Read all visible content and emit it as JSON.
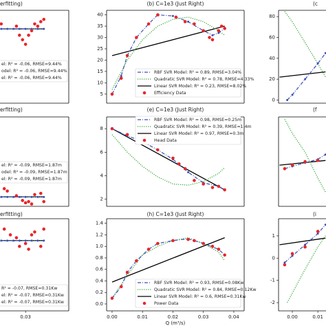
{
  "chart_data": [
    {
      "type": "line",
      "title": "erfitting)",
      "xlim": [
        0.0216,
        0.0442
      ],
      "ylim": [
        1,
        42
      ],
      "series": [
        {
          "name": "el: R² = -0.06, RMSE=9.44%",
          "color": "#3a4fb5",
          "style": "dash-dot",
          "x": [
            0.022,
            0.024,
            0.026,
            0.028,
            0.03,
            0.032,
            0.034,
            0.036
          ],
          "values": [
            33.8,
            33.8,
            33.8,
            33.8,
            33.8,
            33.8,
            33.8,
            33.8
          ]
        },
        {
          "name": "odel: R² = -0.06, RMSE=9.44%",
          "color": "#2ca02c",
          "style": "dotted",
          "x": [
            0.022,
            0.036
          ],
          "values": [
            33.8,
            33.8
          ]
        },
        {
          "name": "el: R² = -0.06, RMSE=9.44%",
          "color": "#000000",
          "style": "solid",
          "x": [
            0.022,
            0.036
          ],
          "values": [
            33.8,
            33.8
          ]
        },
        {
          "color": "#e8262b",
          "style": "markers",
          "x": [
            0.022,
            0.027,
            0.028,
            0.029,
            0.03,
            0.031,
            0.032,
            0.033,
            0.034,
            0.035,
            0.036
          ],
          "values": [
            36,
            35,
            31,
            29,
            27,
            31,
            33,
            36,
            35,
            37,
            38
          ]
        }
      ]
    },
    {
      "type": "line",
      "title": "(b) C=1e3 (Just Right)",
      "xlim": [
        -0.0018,
        0.0434
      ],
      "ylim": [
        1,
        42
      ],
      "yticks": [
        5,
        10,
        15,
        20,
        25,
        30,
        35,
        40
      ],
      "series": [
        {
          "name": "RBF SVR Model: R² = 0.89, RMSE=3.04%",
          "color": "#3a4fb5",
          "style": "dash-dot",
          "x": [
            0,
            0.003,
            0.005,
            0.008,
            0.012,
            0.015,
            0.02,
            0.025,
            0.03,
            0.033,
            0.035,
            0.037
          ],
          "values": [
            5,
            13,
            22,
            30,
            36,
            40,
            39.5,
            37,
            33,
            31,
            32,
            34
          ]
        },
        {
          "name": "Quadratic SVR Model: R² = 0.78, RMSE=4.33%",
          "color": "#2ca02c",
          "style": "dotted",
          "x": [
            0,
            0.005,
            0.01,
            0.015,
            0.02,
            0.025,
            0.03,
            0.035,
            0.037
          ],
          "values": [
            7,
            20,
            29,
            35,
            38,
            39,
            37,
            33,
            31
          ]
        },
        {
          "name": "Linear SVR Model: R² = 0.23, RMSE=8.02%",
          "color": "#000000",
          "style": "solid",
          "x": [
            0,
            0.037
          ],
          "values": [
            22,
            35
          ]
        },
        {
          "name": "Efficiency Data",
          "color": "#e8262b",
          "style": "markers",
          "x": [
            0,
            0.003,
            0.005,
            0.008,
            0.012,
            0.015,
            0.021,
            0.024,
            0.027,
            0.03,
            0.032,
            0.033,
            0.035,
            0.036,
            0.037
          ],
          "values": [
            5,
            12,
            22,
            30,
            36,
            40,
            39,
            37,
            36,
            33,
            30,
            29,
            33,
            35,
            34
          ]
        }
      ]
    },
    {
      "type": "line",
      "title": "(c",
      "xlim": [
        -0.0054,
        0.0132
      ],
      "ylim": [
        -3,
        86
      ],
      "yticks": [
        0,
        20,
        40,
        60,
        80
      ],
      "series": [
        {
          "color": "#3a4fb5",
          "style": "dash-dot",
          "x": [
            -0.002,
            0,
            0.005,
            0.01,
            0.013
          ],
          "values": [
            0,
            5,
            20,
            35,
            45
          ]
        },
        {
          "color": "#2ca02c",
          "style": "dotted",
          "x": [
            -0.003,
            0,
            0.005,
            0.01,
            0.013
          ],
          "values": [
            85,
            75,
            55,
            35,
            22
          ]
        },
        {
          "color": "#000000",
          "style": "solid",
          "x": [
            -0.005,
            0.013
          ],
          "values": [
            22,
            27
          ]
        }
      ]
    },
    {
      "type": "line",
      "title": "erfitting)",
      "xlim": [
        0.0216,
        0.0442
      ],
      "ylim": [
        1.4,
        9
      ],
      "series": [
        {
          "name": "el: R² = -0.09, RMSE=1.87m",
          "color": "#3a4fb5",
          "style": "dash-dot",
          "x": [
            0.022,
            0.024,
            0.026,
            0.028,
            0.03,
            0.032,
            0.034,
            0.036
          ],
          "values": [
            2.2,
            2.2,
            2.2,
            2.2,
            2.2,
            2.2,
            2.2,
            2.2
          ]
        },
        {
          "name": "odel: R² = -0.09, RMSE=1.87m",
          "color": "#2ca02c",
          "style": "dotted",
          "x": [
            0.022,
            0.036
          ],
          "values": [
            2.2,
            2.2
          ]
        },
        {
          "name": "el: R² = -0.09, RMSE=1.87m",
          "color": "#000000",
          "style": "solid",
          "x": [
            0.022,
            0.036
          ],
          "values": [
            2.2,
            2.2
          ]
        },
        {
          "color": "#e8262b",
          "style": "markers",
          "x": [
            0.023,
            0.024,
            0.027,
            0.029,
            0.03,
            0.031,
            0.032,
            0.033,
            0.035,
            0.036
          ],
          "values": [
            2.9,
            2.7,
            2.3,
            1.9,
            1.7,
            1.8,
            1.6,
            2.4,
            2.5,
            1.8
          ]
        }
      ]
    },
    {
      "type": "line",
      "title": "(e) C=1e3 (Just Right)",
      "xlim": [
        -0.0018,
        0.0434
      ],
      "ylim": [
        1.4,
        9
      ],
      "yticks": [
        2,
        4,
        6,
        8
      ],
      "series": [
        {
          "name": "RBF SVR Model: R² = 0.98, RMSE=0.25m",
          "color": "#3a4fb5",
          "style": "dash-dot",
          "x": [
            0,
            0.005,
            0.01,
            0.015,
            0.02,
            0.025,
            0.03,
            0.035,
            0.037
          ],
          "values": [
            8,
            7.4,
            6.9,
            6.2,
            5.4,
            4.3,
            3.4,
            3.1,
            2.8
          ]
        },
        {
          "name": "Quadratic SVR Model: R² = 0.39, RMSE=1.4m",
          "color": "#2ca02c",
          "style": "dotted",
          "x": [
            0,
            0.005,
            0.01,
            0.015,
            0.02,
            0.025,
            0.03,
            0.035,
            0.037
          ],
          "values": [
            7.5,
            6,
            4.8,
            3.9,
            3.3,
            3.2,
            3.5,
            4.2,
            4.7
          ]
        },
        {
          "name": "Linear SVR Model: R² = 0.97, RMSE=0.3m",
          "color": "#000000",
          "style": "solid",
          "x": [
            0,
            0.037
          ],
          "values": [
            8,
            2.8
          ]
        },
        {
          "name": "Head Data",
          "color": "#e8262b",
          "style": "markers",
          "x": [
            0,
            0.005,
            0.01,
            0.015,
            0.02,
            0.022,
            0.024,
            0.027,
            0.03,
            0.033,
            0.035,
            0.037
          ],
          "values": [
            8,
            7.5,
            7,
            6.2,
            5.5,
            5,
            4.6,
            3.6,
            3.3,
            3,
            3.1,
            2.8
          ]
        }
      ]
    },
    {
      "type": "line",
      "title": "(f",
      "xlim": [
        -0.0054,
        0.0132
      ],
      "ylim": [
        1.4,
        9
      ],
      "series": [
        {
          "color": "#3a4fb5",
          "style": "dash-dot",
          "x": [
            -0.003,
            0,
            0.005,
            0.01,
            0.013
          ],
          "values": [
            4.6,
            4.8,
            5.1,
            5.4,
            5.8
          ]
        },
        {
          "color": "#2ca02c",
          "style": "dotted",
          "x": [
            -0.003,
            0,
            0.005,
            0.01,
            0.013
          ],
          "values": [
            8.8,
            7.6,
            6,
            3.8,
            2.6
          ]
        },
        {
          "color": "#000000",
          "style": "solid",
          "x": [
            -0.005,
            0.013
          ],
          "values": [
            4.9,
            5.3
          ]
        },
        {
          "color": "#e8262b",
          "style": "markers",
          "x": [
            -0.003,
            0,
            0.005,
            0.01
          ],
          "values": [
            4.6,
            4.9,
            5.2,
            5.3
          ]
        }
      ]
    },
    {
      "type": "line",
      "title": "erfitting)",
      "xlim": [
        0.0216,
        0.0442
      ],
      "ylim": [
        -0.12,
        1.48
      ],
      "xticks": [
        0.03
      ],
      "series": [
        {
          "name": "R² = -0.07, RMSE=0.31Kw",
          "color": "#3a4fb5",
          "style": "dash-dot",
          "x": [
            0.022,
            0.024,
            0.026,
            0.028,
            0.03,
            0.032,
            0.034,
            0.036
          ],
          "values": [
            1.1,
            1.1,
            1.1,
            1.1,
            1.1,
            1.1,
            1.1,
            1.1
          ]
        },
        {
          "name": "el: R² = -0.07, RMSE=0.31Kw",
          "color": "#2ca02c",
          "style": "dotted",
          "x": [
            0.022,
            0.036
          ],
          "values": [
            1.1,
            1.1
          ]
        },
        {
          "name": "el: R² = -0.07, RMSE=0.31Kw",
          "color": "#000000",
          "style": "solid",
          "x": [
            0.022,
            0.036
          ],
          "values": [
            1.1,
            1.1
          ]
        },
        {
          "color": "#e8262b",
          "style": "markers",
          "x": [
            0.023,
            0.025,
            0.027,
            0.028,
            0.03,
            0.031,
            0.032,
            0.033,
            0.035,
            0.036
          ],
          "values": [
            1.3,
            1.2,
            1.15,
            1.0,
            1.05,
            0.95,
            1.2,
            1.25,
            1.0,
            1.3
          ]
        }
      ]
    },
    {
      "type": "line",
      "title": "(h) C=1e3 (Just Right)",
      "xlim": [
        -0.0018,
        0.0434
      ],
      "ylim": [
        -0.12,
        1.48
      ],
      "xlabel": "Q (m³/s)",
      "xticks": [
        {
          "value": 0,
          "label": "0.00"
        },
        0.01,
        0.02,
        0.03,
        0.04
      ],
      "yticks": [
        {
          "value": 0,
          "label": "0.0"
        },
        0.2,
        0.4,
        0.6,
        0.8,
        {
          "value": 1,
          "label": "1.0"
        },
        1.2,
        1.4
      ],
      "series": [
        {
          "name": "RBF SVR Model: R² = 0.93, RMSE=0.08Kw",
          "color": "#3a4fb5",
          "style": "dash-dot",
          "x": [
            0,
            0.003,
            0.005,
            0.008,
            0.012,
            0.015,
            0.02,
            0.025,
            0.03,
            0.035,
            0.037
          ],
          "values": [
            0.1,
            0.3,
            0.55,
            0.75,
            0.95,
            1.05,
            1.1,
            1.13,
            1.05,
            0.95,
            0.85
          ]
        },
        {
          "name": "Quadratic SVR Model: R² = 0.84, RMSE=0.12Kw",
          "color": "#2ca02c",
          "style": "dotted",
          "x": [
            0,
            0.005,
            0.01,
            0.015,
            0.02,
            0.025,
            0.03,
            0.035,
            0.037
          ],
          "values": [
            0.1,
            0.5,
            0.85,
            1.0,
            1.1,
            1.15,
            1.05,
            0.9,
            0.75
          ]
        },
        {
          "name": "Linear SVR Model: R² = 0.6, RMSE=0.31Kw",
          "color": "#000000",
          "style": "solid",
          "x": [
            0,
            0.037
          ],
          "values": [
            0.38,
            1.15
          ]
        },
        {
          "name": "Power Data",
          "color": "#e8262b",
          "style": "markers",
          "x": [
            0,
            0.003,
            0.005,
            0.008,
            0.012,
            0.015,
            0.02,
            0.025,
            0.027,
            0.03,
            0.033,
            0.035,
            0.037
          ],
          "values": [
            0.1,
            0.3,
            0.55,
            0.75,
            0.95,
            1.05,
            1.1,
            1.12,
            1.1,
            1.05,
            1.0,
            0.95,
            0.85
          ]
        }
      ]
    },
    {
      "type": "line",
      "title": "(i",
      "xlim": [
        -0.0054,
        0.0132
      ],
      "ylim": [
        -2.37,
        1.77
      ],
      "xticks": [
        {
          "value": 0,
          "label": "0.00"
        },
        0.01
      ],
      "yticks": [
        -2,
        -1,
        0,
        1
      ],
      "series": [
        {
          "color": "#3a4fb5",
          "style": "dash-dot",
          "x": [
            -0.003,
            0,
            0.005,
            0.01,
            0.013
          ],
          "values": [
            -0.2,
            0.1,
            0.6,
            1.1,
            1.5
          ]
        },
        {
          "color": "#2ca02c",
          "style": "dotted",
          "x": [
            -0.002,
            0.005,
            0.01,
            0.013
          ],
          "values": [
            -2,
            -0.5,
            0.5,
            1
          ]
        },
        {
          "color": "#000000",
          "style": "solid",
          "x": [
            -0.005,
            0.013
          ],
          "values": [
            0.6,
            0.9
          ]
        },
        {
          "color": "#e8262b",
          "style": "markers",
          "x": [
            -0.003,
            0,
            0.005,
            0.01
          ],
          "values": [
            -0.3,
            0.2,
            0.5,
            1.2
          ]
        }
      ]
    }
  ]
}
